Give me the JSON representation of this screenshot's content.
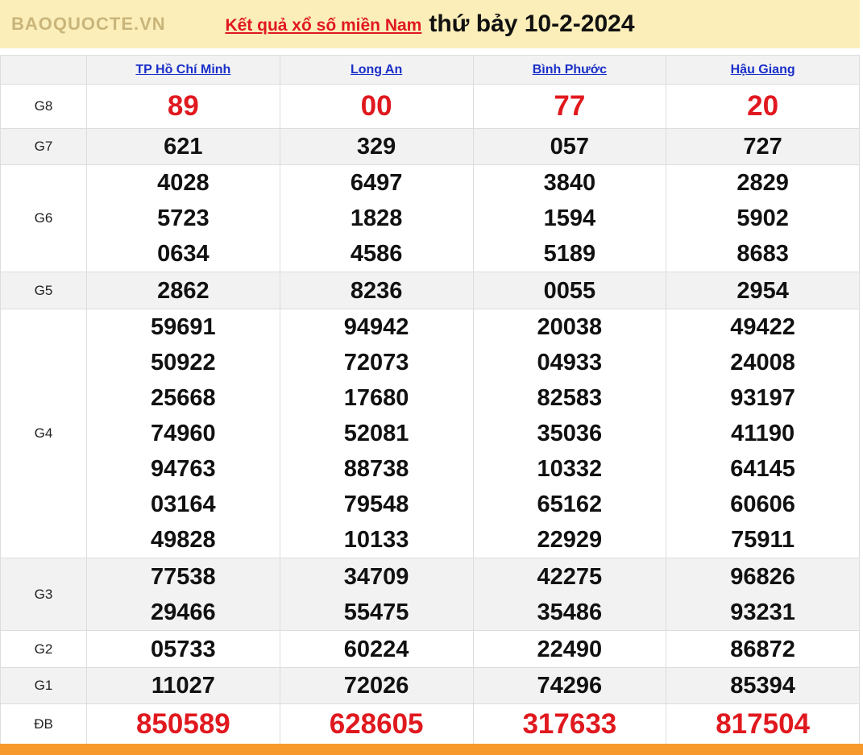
{
  "header": {
    "link": "Kết quả xổ số miền Nam",
    "date": "thứ bảy 10-2-2024"
  },
  "provinces": [
    "TP Hồ Chí Minh",
    "Long An",
    "Bình Phước",
    "Hậu Giang"
  ],
  "rows": [
    {
      "label": "G8",
      "highlight": true,
      "shaded": false,
      "cells": [
        [
          "89"
        ],
        [
          "00"
        ],
        [
          "77"
        ],
        [
          "20"
        ]
      ]
    },
    {
      "label": "G7",
      "shaded": true,
      "cells": [
        [
          "621"
        ],
        [
          "329"
        ],
        [
          "057"
        ],
        [
          "727"
        ]
      ]
    },
    {
      "label": "G6",
      "shaded": false,
      "cells": [
        [
          "4028",
          "5723",
          "0634"
        ],
        [
          "6497",
          "1828",
          "4586"
        ],
        [
          "3840",
          "1594",
          "5189"
        ],
        [
          "2829",
          "5902",
          "8683"
        ]
      ]
    },
    {
      "label": "G5",
      "shaded": true,
      "cells": [
        [
          "2862"
        ],
        [
          "8236"
        ],
        [
          "0055"
        ],
        [
          "2954"
        ]
      ]
    },
    {
      "label": "G4",
      "shaded": false,
      "cells": [
        [
          "59691",
          "50922",
          "25668",
          "74960",
          "94763",
          "03164",
          "49828"
        ],
        [
          "94942",
          "72073",
          "17680",
          "52081",
          "88738",
          "79548",
          "10133"
        ],
        [
          "20038",
          "04933",
          "82583",
          "35036",
          "10332",
          "65162",
          "22929"
        ],
        [
          "49422",
          "24008",
          "93197",
          "41190",
          "64145",
          "60606",
          "75911"
        ]
      ]
    },
    {
      "label": "G3",
      "shaded": true,
      "cells": [
        [
          "77538",
          "29466"
        ],
        [
          "34709",
          "55475"
        ],
        [
          "42275",
          "35486"
        ],
        [
          "96826",
          "93231"
        ]
      ]
    },
    {
      "label": "G2",
      "shaded": false,
      "cells": [
        [
          "05733"
        ],
        [
          "60224"
        ],
        [
          "22490"
        ],
        [
          "86872"
        ]
      ]
    },
    {
      "label": "G1",
      "shaded": true,
      "cells": [
        [
          "11027"
        ],
        [
          "72026"
        ],
        [
          "74296"
        ],
        [
          "85394"
        ]
      ]
    },
    {
      "label": "ĐB",
      "highlight": true,
      "shaded": false,
      "cells": [
        [
          "850589"
        ],
        [
          "628605"
        ],
        [
          "317633"
        ],
        [
          "817504"
        ]
      ]
    }
  ],
  "watermark": "BAOQUOCTE.VN",
  "colors": {
    "banner": "#fbeeb9",
    "accent": "#e0191f",
    "link": "#1a2fc8",
    "footer": "#f7992d"
  }
}
